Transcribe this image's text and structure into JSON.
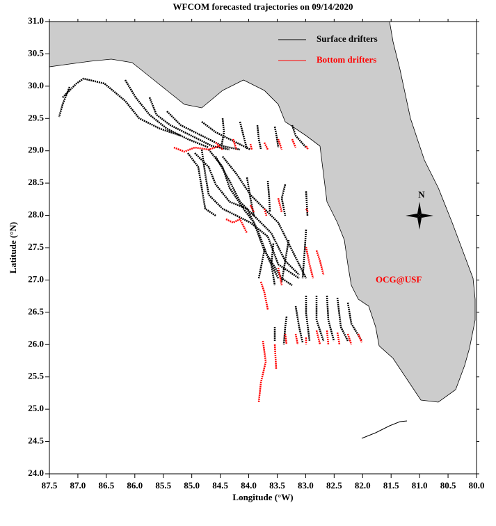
{
  "chart_data": {
    "type": "map",
    "title": "WFCOM forecasted trajectories on 09/14/2020",
    "x_label": "Longitude (°W)",
    "y_label": "Latitude (°N)",
    "xlim": [
      87.5,
      80.0
    ],
    "ylim": [
      24.0,
      31.0
    ],
    "xticks": [
      87.5,
      {
        "value": 87,
        "label": "87.0"
      },
      86.5,
      {
        "value": 86,
        "label": "86.0"
      },
      85.5,
      {
        "value": 85,
        "label": "85.0"
      },
      84.5,
      {
        "value": 84,
        "label": "84.0"
      },
      83.5,
      {
        "value": 83,
        "label": "83.0"
      },
      82.5,
      {
        "value": 82,
        "label": "82.0"
      },
      81.5,
      {
        "value": 81,
        "label": "81.0"
      },
      80.5,
      {
        "value": 80,
        "label": "80.0"
      }
    ],
    "yticks": [
      {
        "value": 24,
        "label": "24.0"
      },
      24.5,
      {
        "value": 25,
        "label": "25.0"
      },
      25.5,
      {
        "value": 26,
        "label": "26.0"
      },
      26.5,
      {
        "value": 27,
        "label": "27.0"
      },
      27.5,
      {
        "value": 28,
        "label": "28.0"
      },
      28.5,
      {
        "value": 29,
        "label": "29.0"
      },
      29.5,
      {
        "value": 30,
        "label": "30.0"
      },
      30.5,
      {
        "value": 31,
        "label": "31.0"
      }
    ],
    "series": [
      {
        "name": "Surface drifters",
        "color": "#000000"
      },
      {
        "name": "Bottom drifters",
        "color": "#ff0000"
      }
    ],
    "annotation": "OCG@USF",
    "compass": "N"
  }
}
